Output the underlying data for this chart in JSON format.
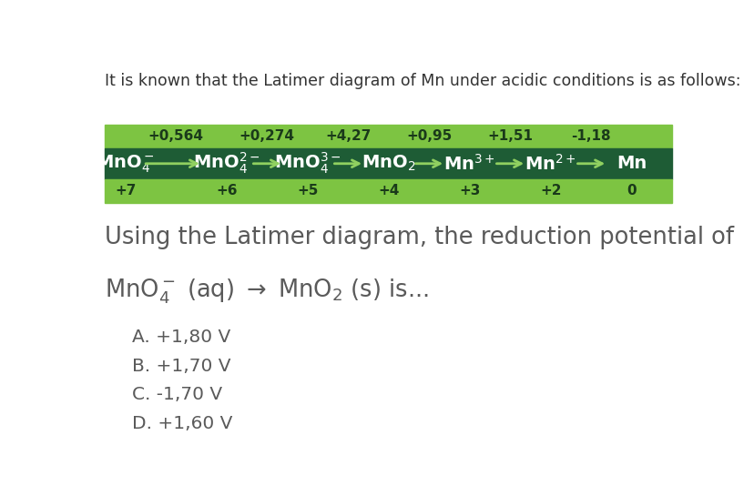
{
  "title_text": "It is known that the Latimer diagram of Mn under acidic conditions is as follows:",
  "bg_color": "#ffffff",
  "table_header_bg": "#7dc442",
  "table_middle_bg": "#1e5c35",
  "table_header_color": "#1a3a1a",
  "table_middle_color": "#ffffff",
  "potentials": [
    "+0,564",
    "+0,274",
    "+4,27",
    "+0,95",
    "+1,51",
    "-1,18"
  ],
  "oxidation_states": [
    "+7",
    "+6",
    "+5",
    "+4",
    "+3",
    "+2",
    "0"
  ],
  "question_line1": "Using the Latimer diagram, the reduction potential of",
  "choices": [
    "A. +1,80 V",
    "B. +1,70 V",
    "C. -1,70 V",
    "D. +1,60 V"
  ],
  "title_fontsize": 12.5,
  "question_fontsize": 18.5,
  "choice_fontsize": 14.5,
  "table_species_fontsize": 14,
  "table_pot_fontsize": 11,
  "table_ox_fontsize": 11,
  "text_color_gray": "#5a5a5a",
  "text_color_dark": "#333333",
  "arrow_color": "#90d060"
}
